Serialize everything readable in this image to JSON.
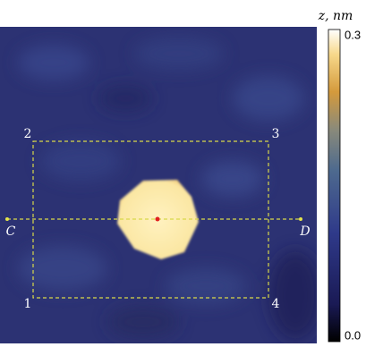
{
  "colorbar": {
    "label": "z, nm",
    "max_label": "0.3",
    "min_label": "0.0"
  },
  "corners": {
    "top_left": "2",
    "top_right": "3",
    "bottom_left": "1",
    "bottom_right": "4"
  },
  "line_ends": {
    "left": "C",
    "right": "D"
  }
}
